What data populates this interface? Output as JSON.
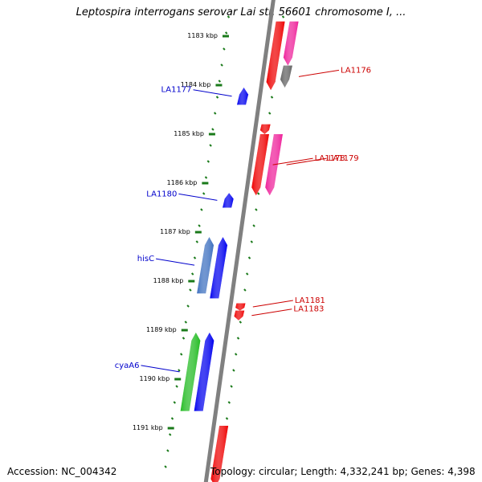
{
  "title": "Leptospira interrogans serovar Lai str. 56601 chromosome I, ...",
  "footer": {
    "accession": "Accession: NC_004342",
    "topology": "Topology: circular; Length: 4,332,241 bp; Genes: 4,398"
  },
  "colors": {
    "backbone": "#808080",
    "tick": "#1a7a1a",
    "left_label": "#0000cc",
    "right_label": "#cc0000"
  },
  "ticks": [
    {
      "kbp": 1183,
      "label": "1183 kbp"
    },
    {
      "kbp": 1184,
      "label": "1184 kbp"
    },
    {
      "kbp": 1185,
      "label": "1185 kbp"
    },
    {
      "kbp": 1186,
      "label": "1186 kbp"
    },
    {
      "kbp": 1187,
      "label": "1187 kbp"
    },
    {
      "kbp": 1188,
      "label": "1188 kbp"
    },
    {
      "kbp": 1189,
      "label": "1189 kbp"
    },
    {
      "kbp": 1190,
      "label": "1190 kbp"
    },
    {
      "kbp": 1191,
      "label": "1191 kbp"
    }
  ],
  "genes": [
    {
      "id": "top-red",
      "color": "#ee0000",
      "strand": "reverse",
      "track": 1,
      "start": 1182.7,
      "end": 1184.1
    },
    {
      "id": "top-pink",
      "color": "#ee1f99",
      "strand": "reverse",
      "track": 2,
      "start": 1182.7,
      "end": 1183.6
    },
    {
      "id": "top-gray",
      "color": "#606060",
      "strand": "reverse",
      "track": 2,
      "start": 1183.6,
      "end": 1184.05
    },
    {
      "id": "blue-1",
      "color": "#0000ee",
      "strand": "forward",
      "track": -1,
      "start": 1184.05,
      "end": 1184.4
    },
    {
      "id": "red-small",
      "color": "#ee0000",
      "strand": "reverse",
      "track": 1,
      "start": 1184.8,
      "end": 1185.0
    },
    {
      "id": "red-la1178",
      "color": "#ee0000",
      "strand": "reverse",
      "track": 1,
      "start": 1185.0,
      "end": 1186.25
    },
    {
      "id": "pink-la1179",
      "color": "#ee1f99",
      "strand": "reverse",
      "track": 2,
      "start": 1185.0,
      "end": 1186.25
    },
    {
      "id": "blue-2",
      "color": "#0000ee",
      "strand": "forward",
      "track": -1,
      "start": 1186.2,
      "end": 1186.5
    },
    {
      "id": "steel-hisC",
      "color": "#3c6fbf",
      "strand": "forward",
      "track": -2,
      "start": 1187.1,
      "end": 1188.25
    },
    {
      "id": "blue-3",
      "color": "#0000ee",
      "strand": "forward",
      "track": -1,
      "start": 1187.1,
      "end": 1188.35
    },
    {
      "id": "red-la1181",
      "color": "#ee0000",
      "strand": "reverse",
      "track": 1,
      "start": 1188.45,
      "end": 1188.6
    },
    {
      "id": "red-la1183",
      "color": "#ee0000",
      "strand": "reverse",
      "track": 1,
      "start": 1188.6,
      "end": 1188.8
    },
    {
      "id": "green-cyaA6",
      "color": "#22bb22",
      "strand": "forward",
      "track": -2,
      "start": 1189.05,
      "end": 1190.65
    },
    {
      "id": "blue-4",
      "color": "#0000ee",
      "strand": "forward",
      "track": -1,
      "start": 1189.05,
      "end": 1190.65
    },
    {
      "id": "red-bottom",
      "color": "#ee0000",
      "strand": "reverse",
      "track": 1,
      "start": 1190.95,
      "end": 1192.2
    }
  ],
  "labels_left": [
    {
      "text": "LA1177",
      "gene": "blue-1"
    },
    {
      "text": "LA1180",
      "gene": "blue-2"
    },
    {
      "text": "hisC",
      "gene": "steel-hisC"
    },
    {
      "text": "cyaA6",
      "gene": "green-cyaA6"
    }
  ],
  "labels_right": [
    {
      "text": "LA1176",
      "gene": "top-gray"
    },
    {
      "text": "LA1178",
      "gene": "red-la1178"
    },
    {
      "text": "LA1179",
      "gene": "pink-la1179"
    },
    {
      "text": "LA1181",
      "gene": "red-la1181"
    },
    {
      "text": "LA1183",
      "gene": "red-la1183"
    }
  ]
}
